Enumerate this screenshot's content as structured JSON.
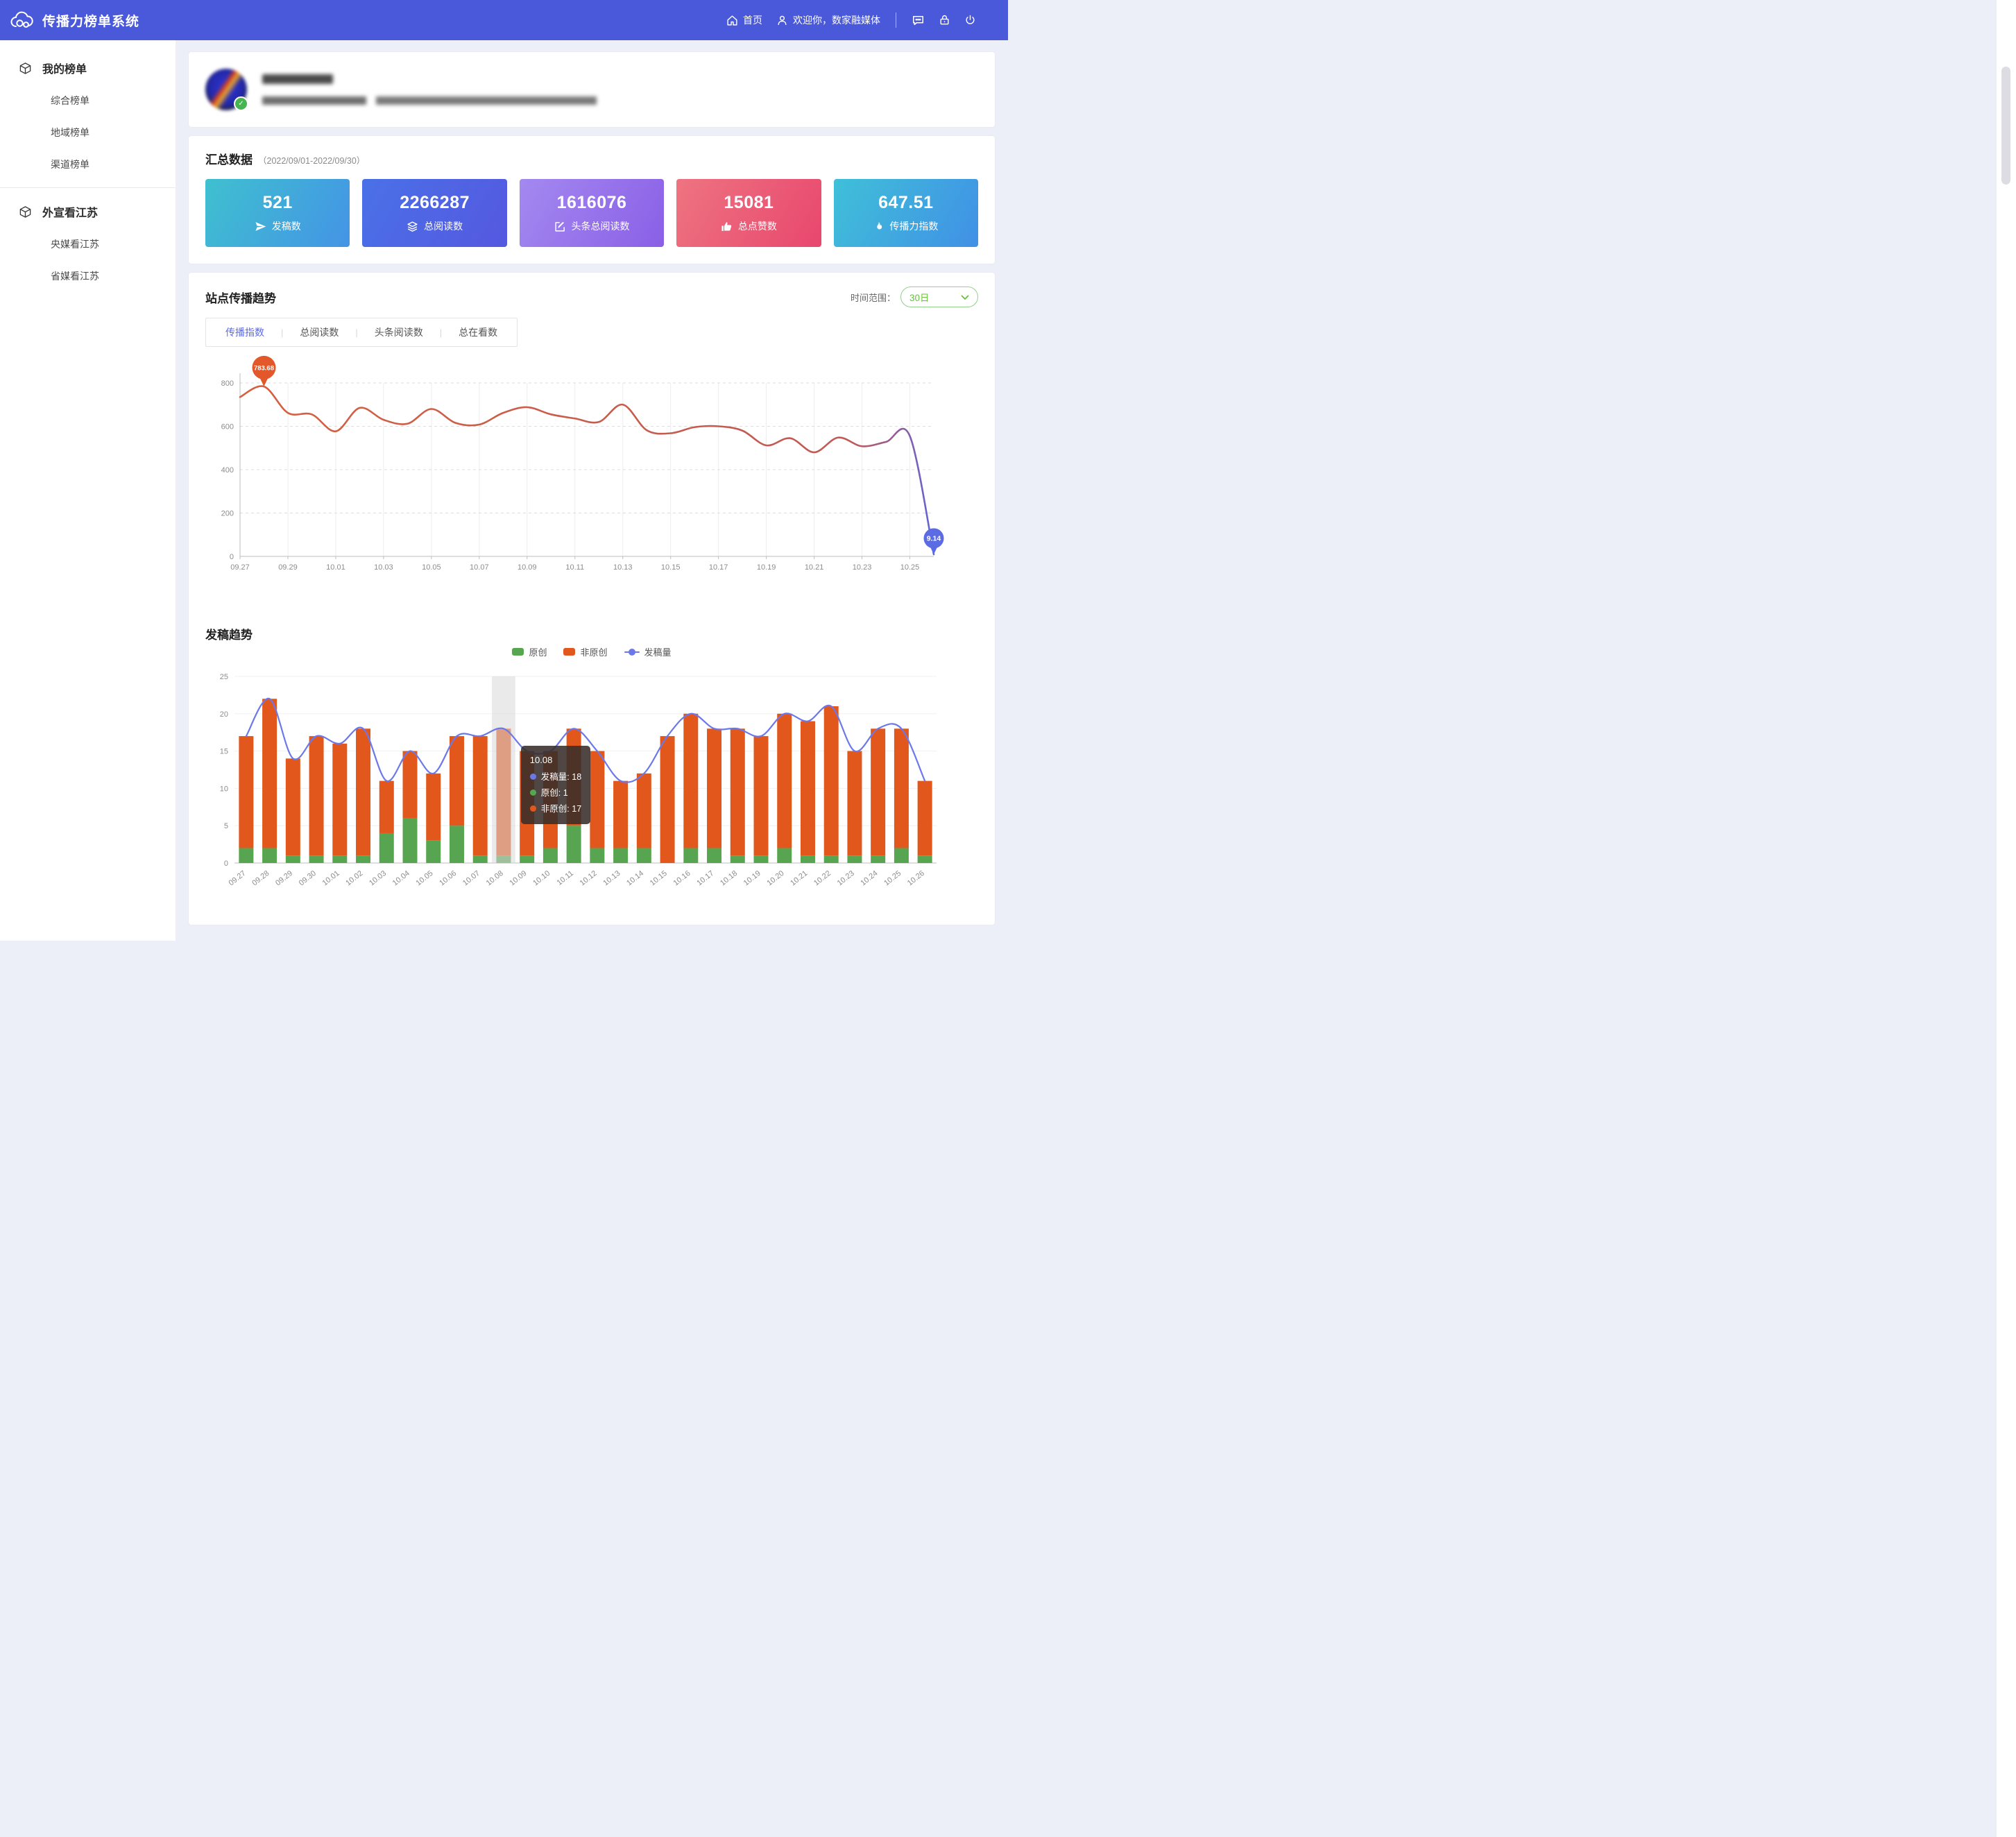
{
  "header": {
    "title": "传播力榜单系统",
    "logo_icon": "cloud-icon",
    "nav_home": "首页",
    "welcome": "欢迎你，数家融媒体",
    "action_icons": [
      "message-icon",
      "lock-icon",
      "power-icon"
    ]
  },
  "sidebar": {
    "groups": [
      {
        "label": "我的榜单",
        "icon": "cube-icon",
        "items": [
          "综合榜单",
          "地域榜单",
          "渠道榜单"
        ]
      },
      {
        "label": "外宣看江苏",
        "icon": "cube-icon",
        "items": [
          "央媒看江苏",
          "省媒看江苏"
        ]
      }
    ]
  },
  "profile": {
    "blurred": true,
    "verified_badge_icon": "check-icon"
  },
  "summary": {
    "title": "汇总数据",
    "date_range": "（2022/09/01-2022/09/30）",
    "cards": [
      {
        "value": "521",
        "label": "发稿数",
        "icon": "paper-plane-icon",
        "gradient": [
          "#3fc0cf",
          "#4494e6"
        ]
      },
      {
        "value": "2266287",
        "label": "总阅读数",
        "icon": "layers-icon",
        "gradient": [
          "#4a71e8",
          "#5558e0"
        ]
      },
      {
        "value": "1616076",
        "label": "头条总阅读数",
        "icon": "edit-icon",
        "gradient": [
          "#a489f0",
          "#8a5fe6"
        ]
      },
      {
        "value": "15081",
        "label": "总点赞数",
        "icon": "thumb-up-icon",
        "gradient": [
          "#ee7480",
          "#e8476e"
        ]
      },
      {
        "value": "647.51",
        "label": "传播力指数",
        "icon": "flame-icon",
        "gradient": [
          "#3fc0d8",
          "#4190e6"
        ]
      }
    ]
  },
  "trend_section": {
    "title": "站点传播趋势",
    "tabs": [
      "传播指数",
      "总阅读数",
      "头条阅读数",
      "总在看数"
    ],
    "active_tab": "传播指数",
    "time_range_label": "时间范围：",
    "time_range_value": "30日",
    "time_range_icon": "chevron-down-icon"
  },
  "publish_section": {
    "title": "发稿趋势",
    "legend": [
      {
        "label": "原创",
        "type": "bar",
        "color": "#57a550"
      },
      {
        "label": "非原创",
        "type": "bar",
        "color": "#e2571c"
      },
      {
        "label": "发稿量",
        "type": "line",
        "color": "#6b78ea"
      }
    ]
  },
  "colors": {
    "header_bg": "#4a58da",
    "accent_blue": "#5a6be5",
    "dropdown_green": "#67c23a",
    "line_start_color": "#d4603f",
    "line_end_color": "#5f66d6",
    "start_marker": "#e2582b",
    "end_marker": "#5b6be4",
    "highlight_band": "#d8d8d8"
  },
  "chart_data": [
    {
      "type": "line",
      "title": "站点传播趋势",
      "series_name": "传播指数",
      "x": [
        "09.27",
        "09.28",
        "09.29",
        "09.30",
        "10.01",
        "10.02",
        "10.03",
        "10.04",
        "10.05",
        "10.06",
        "10.07",
        "10.08",
        "10.09",
        "10.10",
        "10.11",
        "10.12",
        "10.13",
        "10.14",
        "10.15",
        "10.16",
        "10.17",
        "10.18",
        "10.19",
        "10.20",
        "10.21",
        "10.22",
        "10.23",
        "10.24",
        "10.25",
        "10.26"
      ],
      "values": [
        735,
        783.68,
        662,
        655,
        577,
        685,
        630,
        612,
        680,
        616,
        608,
        662,
        688,
        655,
        636,
        620,
        700,
        582,
        568,
        596,
        600,
        580,
        512,
        545,
        480,
        548,
        508,
        528,
        555,
        9.14
      ],
      "ylim": [
        0,
        800
      ],
      "yticks": [
        0,
        200,
        400,
        600,
        800
      ],
      "x_ticks_every": 2,
      "grid": "h-dashed v-solid",
      "annotations": [
        {
          "index": 1,
          "label": "783.68",
          "marker": "pin",
          "color": "#e2582b"
        },
        {
          "index": 29,
          "label": "9.14",
          "marker": "pin",
          "color": "#5b6be4"
        }
      ]
    },
    {
      "type": "bar",
      "title": "发稿趋势",
      "stacked": true,
      "categories": [
        "09.27",
        "09.28",
        "09.29",
        "09.30",
        "10.01",
        "10.02",
        "10.03",
        "10.04",
        "10.05",
        "10.06",
        "10.07",
        "10.08",
        "10.09",
        "10.10",
        "10.11",
        "10.12",
        "10.13",
        "10.14",
        "10.15",
        "10.16",
        "10.17",
        "10.18",
        "10.19",
        "10.20",
        "10.21",
        "10.22",
        "10.23",
        "10.24",
        "10.25",
        "10.26"
      ],
      "series": [
        {
          "name": "原创",
          "type": "bar",
          "color": "#57a550",
          "values": [
            2,
            2,
            1,
            1,
            1,
            1,
            4,
            6,
            3,
            5,
            1,
            1,
            1,
            2,
            5,
            2,
            2,
            2,
            0,
            2,
            2,
            1,
            1,
            2,
            1,
            1,
            1,
            1,
            2,
            1
          ]
        },
        {
          "name": "非原创",
          "type": "bar",
          "color": "#e2571c",
          "values": [
            15,
            20,
            13,
            16,
            15,
            17,
            7,
            9,
            9,
            12,
            16,
            17,
            14,
            13,
            13,
            13,
            9,
            10,
            17,
            18,
            16,
            17,
            16,
            18,
            18,
            20,
            14,
            17,
            16,
            10
          ]
        },
        {
          "name": "发稿量",
          "type": "line",
          "color": "#6b78ea",
          "values": [
            17,
            22,
            14,
            17,
            16,
            18,
            11,
            15,
            12,
            17,
            17,
            18,
            15,
            15,
            18,
            15,
            11,
            12,
            17,
            20,
            18,
            18,
            17,
            20,
            19,
            21,
            15,
            18,
            18,
            11
          ]
        }
      ],
      "ylim": [
        0,
        25
      ],
      "yticks": [
        0,
        5,
        10,
        15,
        20,
        25
      ],
      "highlight_index": 11,
      "tooltip": {
        "title": "10.08",
        "rows": [
          {
            "label": "发稿量",
            "value": "18",
            "color": "#6b78ea"
          },
          {
            "label": "原创",
            "value": "1",
            "color": "#57a550"
          },
          {
            "label": "非原创",
            "value": "17",
            "color": "#e2571c"
          }
        ]
      }
    }
  ]
}
